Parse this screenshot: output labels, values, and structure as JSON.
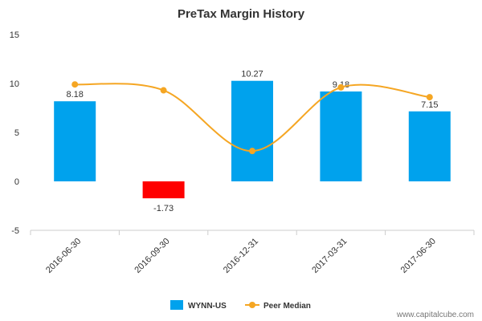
{
  "chart_data": {
    "type": "bar",
    "title": "PreTax Margin History",
    "categories": [
      "2016-06-30",
      "2016-09-30",
      "2016-12-31",
      "2017-03-31",
      "2017-06-30"
    ],
    "series": [
      {
        "name": "WYNN-US",
        "type": "bar",
        "values": [
          8.18,
          -1.73,
          10.27,
          9.18,
          7.15
        ],
        "labels": [
          "8.18",
          "-1.73",
          "10.27",
          "9.18",
          "7.15"
        ],
        "color": "#00a2ed",
        "negative_color": "#ff0000"
      },
      {
        "name": "Peer Median",
        "type": "line",
        "values": [
          9.9,
          9.3,
          3.1,
          9.6,
          8.6
        ],
        "color": "#f5a623"
      }
    ],
    "ylim": [
      -5,
      15
    ],
    "yticks": [
      "-5",
      "0",
      "5",
      "10",
      "15"
    ],
    "grid": false,
    "legend": "bottom-center"
  },
  "watermark": "www.capitalcube.com"
}
